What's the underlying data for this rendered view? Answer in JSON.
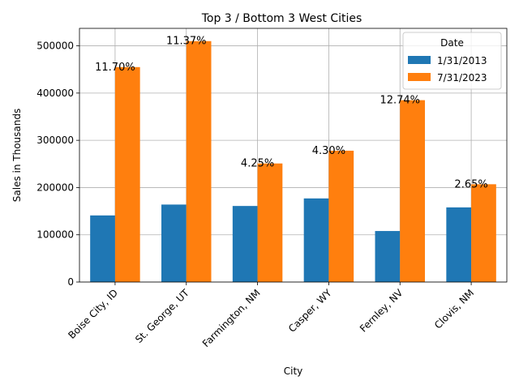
{
  "chart_data": {
    "type": "bar",
    "title": "Top 3 / Bottom 3 West Cities",
    "xlabel": "City",
    "ylabel": "Sales in Thousands",
    "ylim": [
      0,
      537000
    ],
    "yticks": [
      "0",
      "100000",
      "200000",
      "300000",
      "400000",
      "500000"
    ],
    "grid": true,
    "legend_position": "top-right",
    "legend_title": "Date",
    "categories": [
      "Boise City, ID",
      "St. George, UT",
      "Farmington, NM",
      "Casper, WY",
      "Fernley, NV",
      "Clovis, NM"
    ],
    "series": [
      {
        "name": "1/31/2013",
        "color": "#1f77b4",
        "values": [
          141000,
          164000,
          161000,
          177000,
          108000,
          158000
        ]
      },
      {
        "name": "7/31/2023",
        "color": "#ff7f0e",
        "values": [
          455000,
          510000,
          251000,
          278000,
          385000,
          207000
        ]
      }
    ],
    "annotations": [
      "11.70%",
      "11.37%",
      "4.25%",
      "4.30%",
      "12.74%",
      "2.65%"
    ]
  }
}
